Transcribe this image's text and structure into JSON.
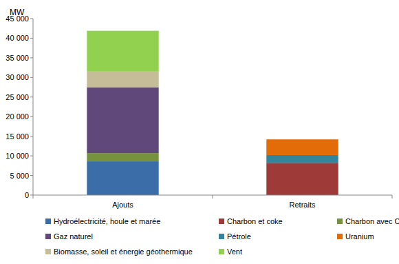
{
  "chart_data": {
    "type": "bar",
    "stacked": true,
    "ylabel": "MW",
    "categories": [
      "Ajouts",
      "Retraits"
    ],
    "series": [
      {
        "name": "Hydroélectricité, houle et marée",
        "color": "#3b6ea8",
        "values": [
          8600,
          0
        ]
      },
      {
        "name": "Charbon et coke",
        "color": "#9e3a38",
        "values": [
          0,
          8200
        ]
      },
      {
        "name": "Charbon avec CSC",
        "color": "#76923c",
        "values": [
          2100,
          0
        ]
      },
      {
        "name": "Gaz naturel",
        "color": "#60497a",
        "values": [
          16800,
          0
        ]
      },
      {
        "name": "Pétrole",
        "color": "#31859c",
        "values": [
          0,
          2000
        ]
      },
      {
        "name": "Uranium",
        "color": "#e36c09",
        "values": [
          0,
          4000
        ]
      },
      {
        "name": "Biomasse, soleil et énergie géothermique",
        "color": "#c4bd97",
        "values": [
          4000,
          0
        ]
      },
      {
        "name": "Vent",
        "color": "#92d050",
        "values": [
          10400,
          0
        ]
      }
    ],
    "ylim": [
      0,
      45000
    ],
    "yticks": [
      0,
      {
        "value": 5000,
        "label": "5 000"
      },
      {
        "value": 10000,
        "label": "10 000"
      },
      {
        "value": 15000,
        "label": "15 000"
      },
      {
        "value": 20000,
        "label": "20 000"
      },
      {
        "value": 25000,
        "label": "25 000"
      },
      {
        "value": 30000,
        "label": "30 000"
      },
      {
        "value": 35000,
        "label": "35 000"
      },
      {
        "value": 40000,
        "label": "40 000"
      },
      {
        "value": 45000,
        "label": "45 000"
      }
    ],
    "grid": false,
    "legend": "bottom"
  }
}
